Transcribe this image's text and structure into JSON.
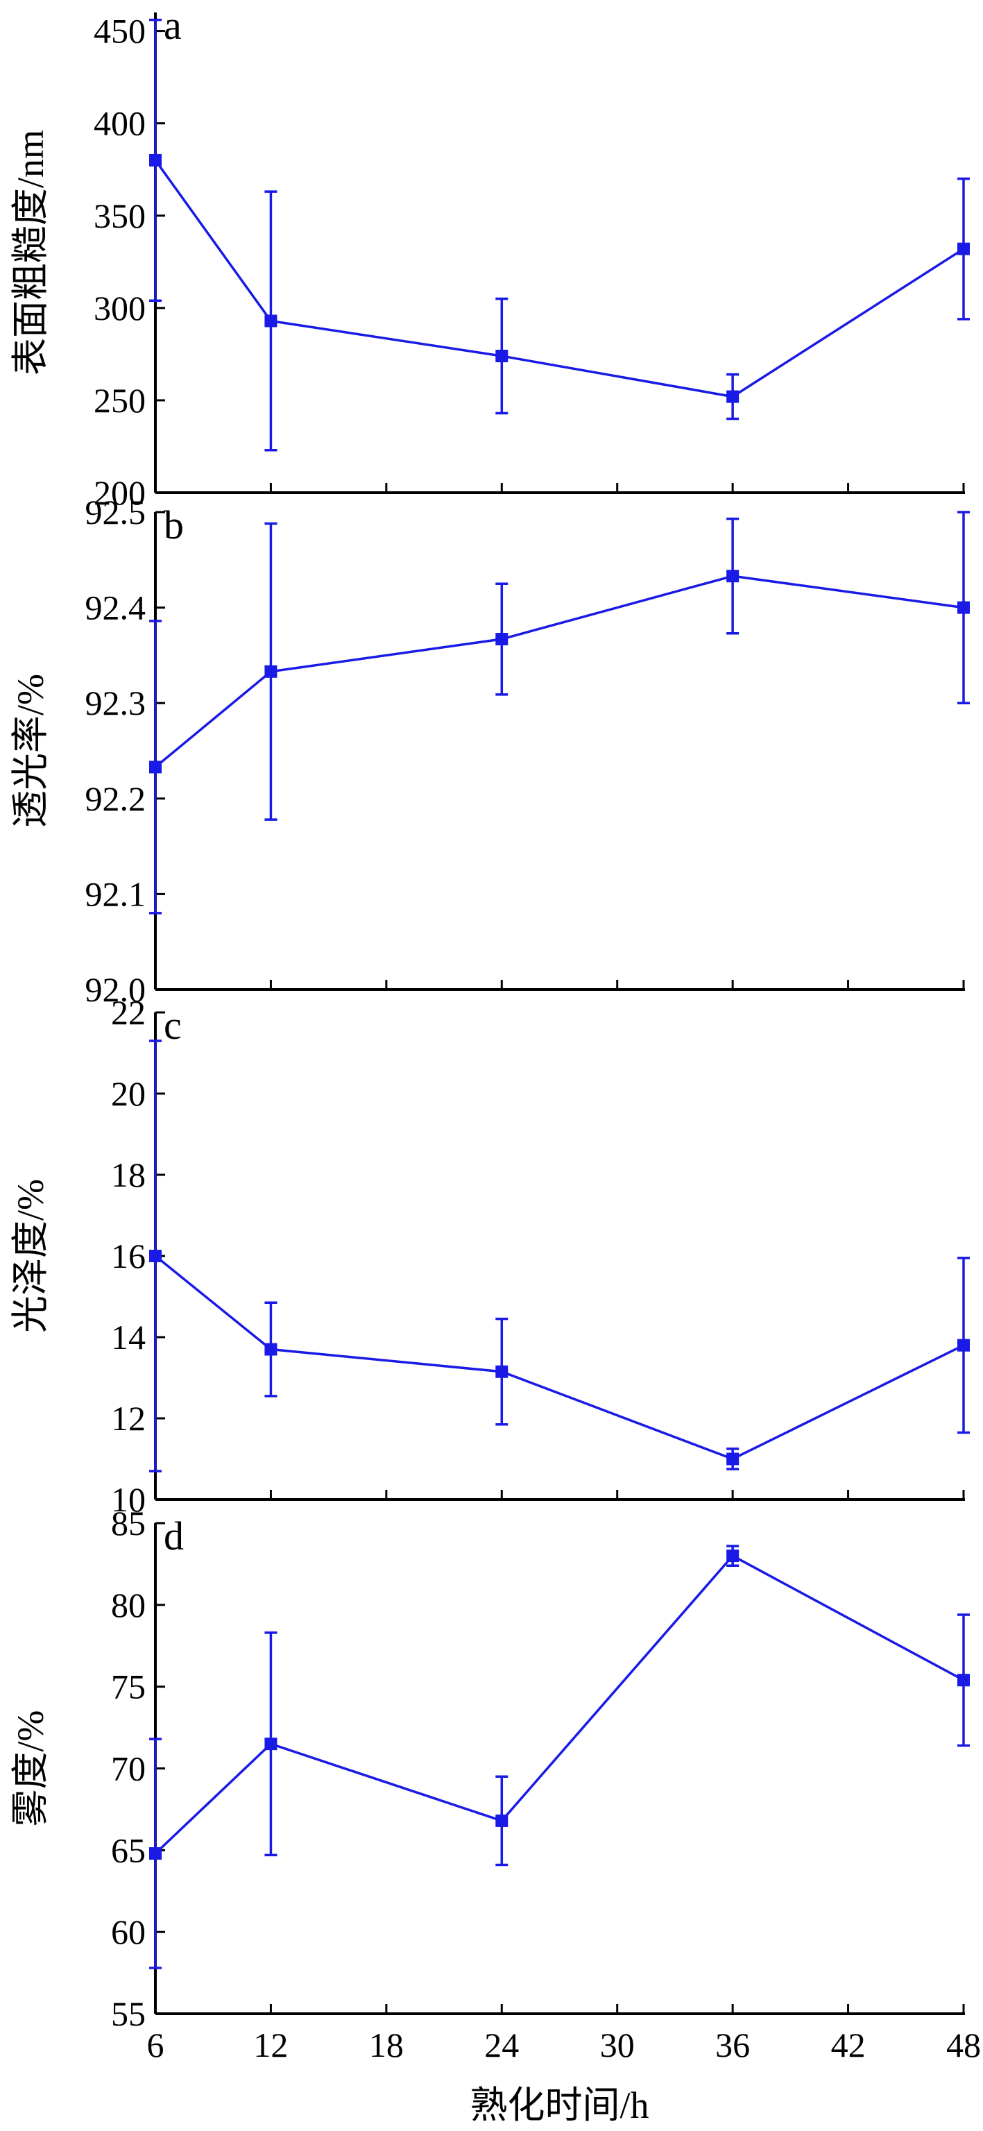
{
  "color": "#1a1ae6",
  "chart_data": [
    {
      "type": "line",
      "panel": "a",
      "ylabel": "表面粗糙度/nm",
      "xlabel": "",
      "x": [
        6,
        12,
        24,
        36,
        48
      ],
      "values": [
        380,
        293,
        274,
        252,
        332
      ],
      "errors": [
        76,
        70,
        31,
        12,
        38
      ],
      "ylim": [
        200,
        460
      ],
      "yticks": [
        200,
        250,
        300,
        350,
        400,
        450
      ],
      "ytick_labels": [
        "200",
        "250",
        "300",
        "350",
        "400",
        "450"
      ],
      "xlim": [
        6,
        48
      ],
      "xticks": [
        6,
        12,
        18,
        24,
        30,
        36,
        42,
        48
      ]
    },
    {
      "type": "line",
      "panel": "b",
      "ylabel": "透光率/%",
      "xlabel": "",
      "x": [
        6,
        12,
        24,
        36,
        48
      ],
      "values": [
        92.233,
        92.333,
        92.367,
        92.433,
        92.4
      ],
      "errors": [
        0.153,
        0.155,
        0.058,
        0.06,
        0.1
      ],
      "ylim": [
        92.0,
        92.5
      ],
      "yticks": [
        92.0,
        92.1,
        92.2,
        92.3,
        92.4,
        92.5
      ],
      "ytick_labels": [
        "92.0",
        "92.1",
        "92.2",
        "92.3",
        "92.4",
        "92.5"
      ],
      "xlim": [
        6,
        48
      ],
      "xticks": [
        6,
        12,
        18,
        24,
        30,
        36,
        42,
        48
      ]
    },
    {
      "type": "line",
      "panel": "c",
      "ylabel": "光泽度/%",
      "xlabel": "",
      "x": [
        6,
        12,
        24,
        36,
        48
      ],
      "values": [
        16.0,
        13.7,
        13.15,
        11.0,
        13.8
      ],
      "errors": [
        5.3,
        1.15,
        1.3,
        0.25,
        2.15
      ],
      "ylim": [
        10,
        22
      ],
      "yticks": [
        10,
        12,
        14,
        16,
        18,
        20,
        22
      ],
      "ytick_labels": [
        "10",
        "12",
        "14",
        "16",
        "18",
        "20",
        "22"
      ],
      "xlim": [
        6,
        48
      ],
      "xticks": [
        6,
        12,
        18,
        24,
        30,
        36,
        42,
        48
      ]
    },
    {
      "type": "line",
      "panel": "d",
      "ylabel": "雾度/%",
      "xlabel": "熟化时间/h",
      "x": [
        6,
        12,
        24,
        36,
        48
      ],
      "values": [
        64.8,
        71.5,
        66.8,
        83.0,
        75.4
      ],
      "errors": [
        7.0,
        6.8,
        2.7,
        0.6,
        4.0
      ],
      "ylim": [
        55,
        85
      ],
      "yticks": [
        55,
        60,
        65,
        70,
        75,
        80,
        85
      ],
      "ytick_labels": [
        "55",
        "60",
        "65",
        "70",
        "75",
        "80",
        "85"
      ],
      "xlim": [
        6,
        48
      ],
      "xticks": [
        6,
        12,
        18,
        24,
        30,
        36,
        42,
        48
      ],
      "xtick_labels": [
        "6",
        "12",
        "18",
        "24",
        "30",
        "36",
        "42",
        "48"
      ]
    }
  ]
}
